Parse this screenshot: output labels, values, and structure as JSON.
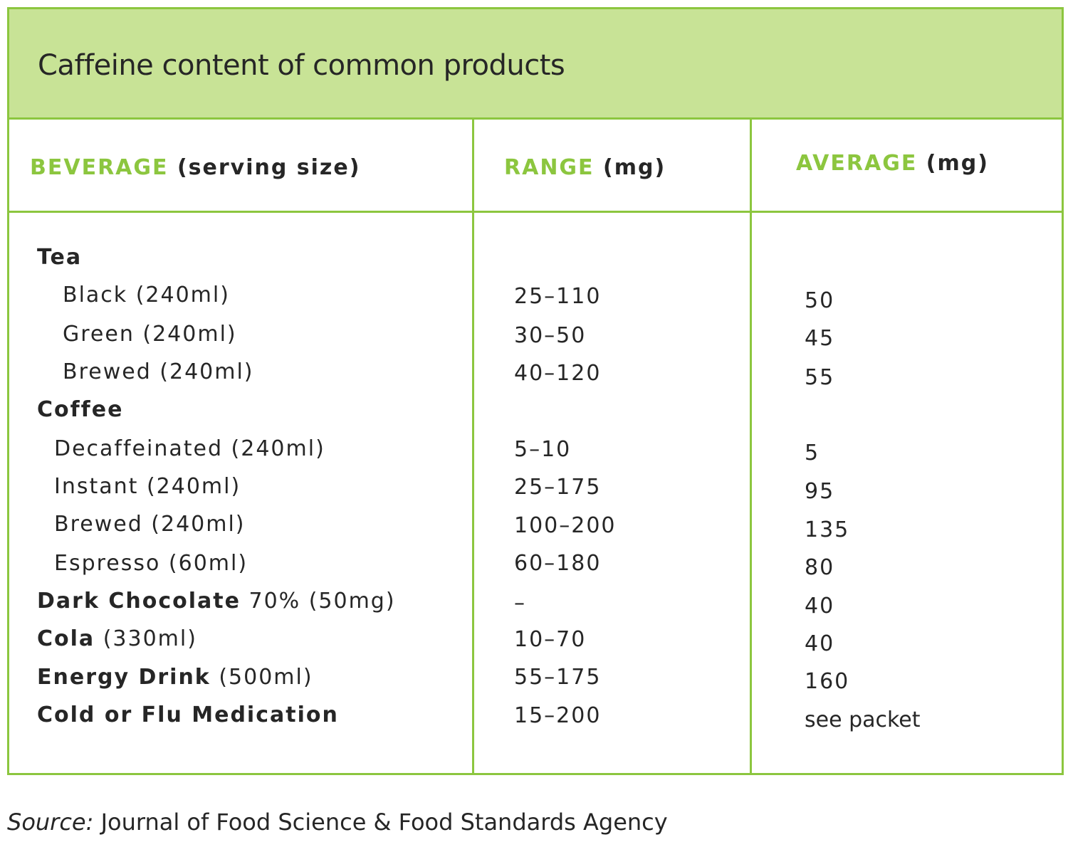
{
  "title": "Caffeine content of common products",
  "headers": {
    "beverage_accent": "BEVERAGE",
    "beverage_rest": "(serving size)",
    "range_accent": "RANGE",
    "range_rest": "(mg)",
    "average_accent": "AVERAGE",
    "average_rest": "(mg)"
  },
  "rows": [
    {
      "bold": "Tea",
      "normal": "",
      "range": "",
      "average": ""
    },
    {
      "bold": "",
      "normal": "Black (240ml)",
      "range": "25–110",
      "average": "50"
    },
    {
      "bold": "",
      "normal": "Green (240ml)",
      "range": "30–50",
      "average": "45"
    },
    {
      "bold": "",
      "normal": "Brewed (240ml)",
      "range": "40–120",
      "average": "55"
    },
    {
      "bold": "Coffee",
      "normal": "",
      "range": "",
      "average": ""
    },
    {
      "bold": "",
      "normal": "Decaffeinated (240ml)",
      "range": "5–10",
      "average": "5"
    },
    {
      "bold": "",
      "normal": "Instant (240ml)",
      "range": "25–175",
      "average": "95"
    },
    {
      "bold": "",
      "normal": "Brewed (240ml)",
      "range": "100–200",
      "average": "135"
    },
    {
      "bold": "",
      "normal": "Espresso (60ml)",
      "range": "60–180",
      "average": "80"
    },
    {
      "bold": "Dark Chocolate",
      "normal": "70% (50mg)",
      "range": "–",
      "average": "40"
    },
    {
      "bold": "Cola",
      "normal": "(330ml)",
      "range": "10–70",
      "average": "40"
    },
    {
      "bold": "Energy Drink",
      "normal": "(500ml)",
      "range": "55–175",
      "average": "160"
    },
    {
      "bold": "Cold or Flu Medication",
      "normal": "",
      "range": "15–200",
      "average": "see packet"
    }
  ],
  "source": {
    "label": "Source:",
    "text": "Journal of Food Science & Food Standards Agency"
  },
  "colors": {
    "accent": "#8cc63f",
    "title_background": "#c8e396",
    "text": "#262626"
  }
}
